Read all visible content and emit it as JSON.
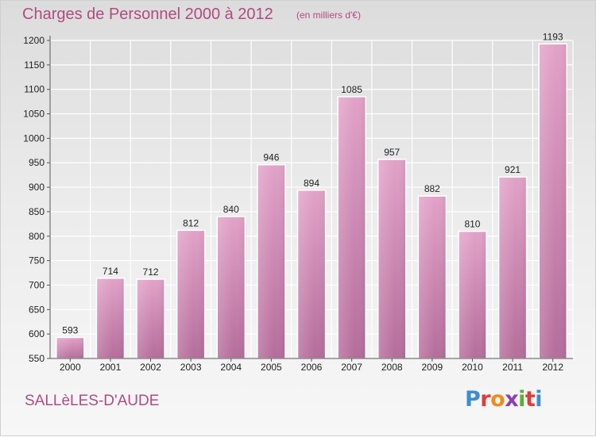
{
  "header": {
    "title": "Charges de Personnel 2000 à 2012",
    "subtitle": "(en milliers d'€)"
  },
  "footer": {
    "town": "SALLèLES-D'AUDE",
    "logo": "Proxiti"
  },
  "colors": {
    "bar": "#dd98c1",
    "bar_dark": "#b46a98",
    "title": "#b14a83",
    "grid": "#ffffff"
  },
  "chart_data": {
    "type": "bar",
    "categories": [
      "2000",
      "2001",
      "2002",
      "2003",
      "2004",
      "2005",
      "2006",
      "2007",
      "2008",
      "2009",
      "2010",
      "2011",
      "2012"
    ],
    "values": [
      593,
      714,
      712,
      812,
      840,
      946,
      894,
      1085,
      957,
      882,
      810,
      921,
      1193
    ],
    "title": "Charges de Personnel 2000 à 2012",
    "ylim": [
      550,
      1200
    ],
    "yticks": [
      550,
      600,
      650,
      700,
      750,
      800,
      850,
      900,
      950,
      1000,
      1050,
      1100,
      1150,
      1200
    ],
    "grid": true
  }
}
